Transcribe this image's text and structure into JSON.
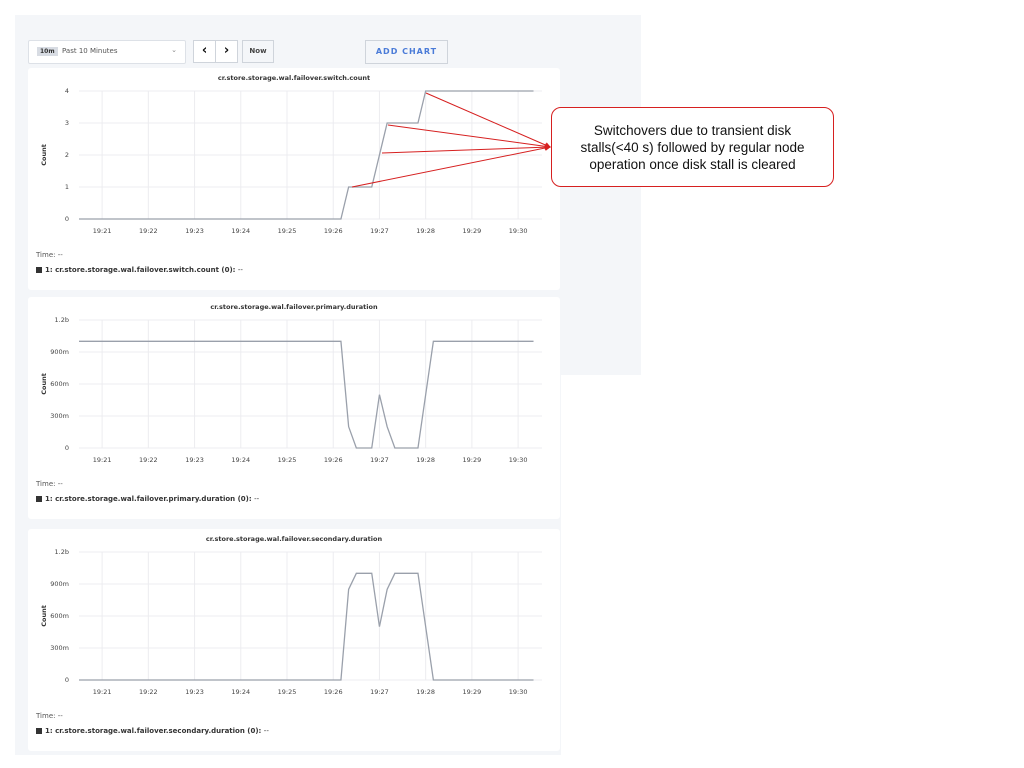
{
  "toolbar": {
    "time_badge": "10m",
    "time_range": "Past 10 Minutes",
    "prev_icon": "chevron-left-icon",
    "next_icon": "chevron-right-icon",
    "now_label": "Now",
    "add_chart_label": "ADD CHART"
  },
  "annotation": {
    "text": "Switchovers due to transient disk stalls(<40 s) followed by regular node operation once disk stall is cleared",
    "color": "#d62020"
  },
  "charts": [
    {
      "title": "cr.store.storage.wal.failover.switch.count",
      "time_label": "Time:",
      "time_value": "--",
      "legend_label": "1: cr.store.storage.wal.failover.switch.count (0):",
      "legend_value": "--"
    },
    {
      "title": "cr.store.storage.wal.failover.primary.duration",
      "time_label": "Time:",
      "time_value": "--",
      "legend_label": "1: cr.store.storage.wal.failover.primary.duration (0):",
      "legend_value": "--"
    },
    {
      "title": "cr.store.storage.wal.failover.secondary.duration",
      "time_label": "Time:",
      "time_value": "--",
      "legend_label": "1: cr.store.storage.wal.failover.secondary.duration (0):",
      "legend_value": "--"
    }
  ],
  "chart_data": [
    {
      "type": "line",
      "title": "cr.store.storage.wal.failover.switch.count",
      "ylabel": "Count",
      "xlabel": "",
      "x_ticks": [
        "19:21",
        "19:22",
        "19:23",
        "19:24",
        "19:25",
        "19:26",
        "19:27",
        "19:28",
        "19:29",
        "19:30"
      ],
      "y_ticks": [
        {
          "v": 0,
          "label": "0"
        },
        {
          "v": 1,
          "label": "1"
        },
        {
          "v": 2,
          "label": "2"
        },
        {
          "v": 3,
          "label": "3"
        },
        {
          "v": 4,
          "label": "4"
        }
      ],
      "ylim": [
        0,
        4
      ],
      "grid": true,
      "line_color": "#9aa0ab",
      "points": [
        [
          "19:20:30",
          0
        ],
        [
          "19:26:10",
          0
        ],
        [
          "19:26:20",
          1
        ],
        [
          "19:26:50",
          1
        ],
        [
          "19:27:10",
          3
        ],
        [
          "19:27:50",
          3
        ],
        [
          "19:28:00",
          4
        ],
        [
          "19:30:20",
          4
        ]
      ]
    },
    {
      "type": "line",
      "title": "cr.store.storage.wal.failover.primary.duration",
      "ylabel": "Count",
      "xlabel": "",
      "x_ticks": [
        "19:21",
        "19:22",
        "19:23",
        "19:24",
        "19:25",
        "19:26",
        "19:27",
        "19:28",
        "19:29",
        "19:30"
      ],
      "y_ticks": [
        {
          "v": 0,
          "label": "0"
        },
        {
          "v": 0.3,
          "label": "300m"
        },
        {
          "v": 0.6,
          "label": "600m"
        },
        {
          "v": 0.9,
          "label": "900m"
        },
        {
          "v": 1.2,
          "label": "1.2b"
        }
      ],
      "ylim": [
        0,
        1.2
      ],
      "grid": true,
      "line_color": "#9aa0ab",
      "points": [
        [
          "19:20:30",
          1
        ],
        [
          "19:26:10",
          1
        ],
        [
          "19:26:20",
          0.2
        ],
        [
          "19:26:30",
          0
        ],
        [
          "19:26:50",
          0
        ],
        [
          "19:27:00",
          0.5
        ],
        [
          "19:27:10",
          0.2
        ],
        [
          "19:27:20",
          0
        ],
        [
          "19:27:50",
          0
        ],
        [
          "19:28:00",
          0.5
        ],
        [
          "19:28:10",
          1
        ],
        [
          "19:30:20",
          1
        ]
      ]
    },
    {
      "type": "line",
      "title": "cr.store.storage.wal.failover.secondary.duration",
      "ylabel": "Count",
      "xlabel": "",
      "x_ticks": [
        "19:21",
        "19:22",
        "19:23",
        "19:24",
        "19:25",
        "19:26",
        "19:27",
        "19:28",
        "19:29",
        "19:30"
      ],
      "y_ticks": [
        {
          "v": 0,
          "label": "0"
        },
        {
          "v": 0.3,
          "label": "300m"
        },
        {
          "v": 0.6,
          "label": "600m"
        },
        {
          "v": 0.9,
          "label": "900m"
        },
        {
          "v": 1.2,
          "label": "1.2b"
        }
      ],
      "ylim": [
        0,
        1.2
      ],
      "grid": true,
      "line_color": "#9aa0ab",
      "points": [
        [
          "19:20:30",
          0
        ],
        [
          "19:26:10",
          0
        ],
        [
          "19:26:20",
          0.85
        ],
        [
          "19:26:30",
          1
        ],
        [
          "19:26:50",
          1
        ],
        [
          "19:27:00",
          0.5
        ],
        [
          "19:27:10",
          0.85
        ],
        [
          "19:27:20",
          1
        ],
        [
          "19:27:50",
          1
        ],
        [
          "19:28:00",
          0.5
        ],
        [
          "19:28:10",
          0
        ],
        [
          "19:30:20",
          0
        ]
      ]
    }
  ]
}
